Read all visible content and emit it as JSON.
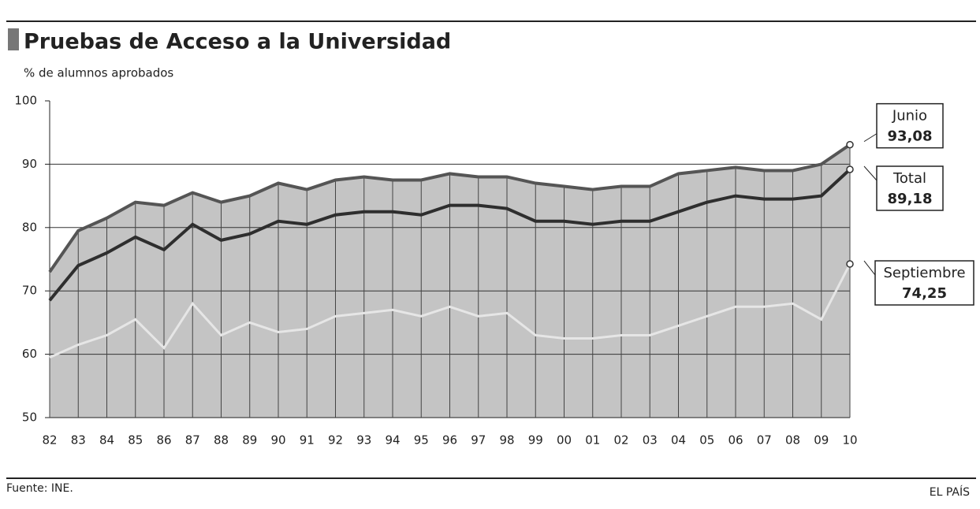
{
  "chart_data": {
    "type": "line",
    "title": "Pruebas de Acceso a la Universidad",
    "subtitle": "% de alumnos aprobados",
    "source": "Fuente: INE.",
    "brand": "EL PAÍS",
    "categories": [
      "82",
      "83",
      "84",
      "85",
      "86",
      "87",
      "88",
      "89",
      "90",
      "91",
      "92",
      "93",
      "94",
      "95",
      "96",
      "97",
      "98",
      "99",
      "00",
      "01",
      "02",
      "03",
      "04",
      "05",
      "06",
      "07",
      "08",
      "09",
      "10"
    ],
    "ylim": [
      50,
      100
    ],
    "yticks": [
      50,
      60,
      70,
      80,
      90,
      100
    ],
    "grid": true,
    "series": [
      {
        "name": "Junio",
        "color": "#555555",
        "values": [
          73,
          79.5,
          81.5,
          84,
          83.5,
          85.5,
          84,
          85,
          87,
          86,
          87.5,
          88,
          87.5,
          87.5,
          88.5,
          88,
          88,
          87,
          86.5,
          86,
          86.5,
          86.5,
          88.5,
          89,
          89.5,
          89,
          89,
          90,
          93.08
        ],
        "value_labels": [
          null,
          null,
          null,
          null,
          null,
          null,
          null,
          null,
          null,
          null,
          null,
          null,
          null,
          null,
          null,
          null,
          null,
          null,
          null,
          null,
          null,
          null,
          null,
          null,
          null,
          null,
          null,
          null,
          "93,08"
        ]
      },
      {
        "name": "Total",
        "color": "#2e2e2e",
        "values": [
          68.5,
          74,
          76,
          78.5,
          76.5,
          80.5,
          78,
          79,
          81,
          80.5,
          82,
          82.5,
          82.5,
          82,
          83.5,
          83.5,
          83,
          81,
          81,
          80.5,
          81,
          81,
          82.5,
          84,
          85,
          84.5,
          84.5,
          85,
          89.18
        ],
        "value_labels": [
          null,
          null,
          null,
          null,
          null,
          null,
          null,
          null,
          null,
          null,
          null,
          null,
          null,
          null,
          null,
          null,
          null,
          null,
          null,
          null,
          null,
          null,
          null,
          null,
          null,
          null,
          null,
          null,
          "89,18"
        ]
      },
      {
        "name": "Septiembre",
        "color": "#e6e6e6",
        "values": [
          59.5,
          61.5,
          63,
          65.5,
          61,
          68,
          63,
          65,
          63.5,
          64,
          66,
          66.5,
          67,
          66,
          67.5,
          66,
          66.5,
          63,
          62.5,
          62.5,
          63,
          63,
          64.5,
          66,
          67.5,
          67.5,
          68,
          65.5,
          74.25
        ],
        "value_labels": [
          null,
          null,
          null,
          null,
          null,
          null,
          null,
          null,
          null,
          null,
          null,
          null,
          null,
          null,
          null,
          null,
          null,
          null,
          null,
          null,
          null,
          null,
          null,
          null,
          null,
          null,
          null,
          null,
          "74,25"
        ]
      }
    ]
  }
}
